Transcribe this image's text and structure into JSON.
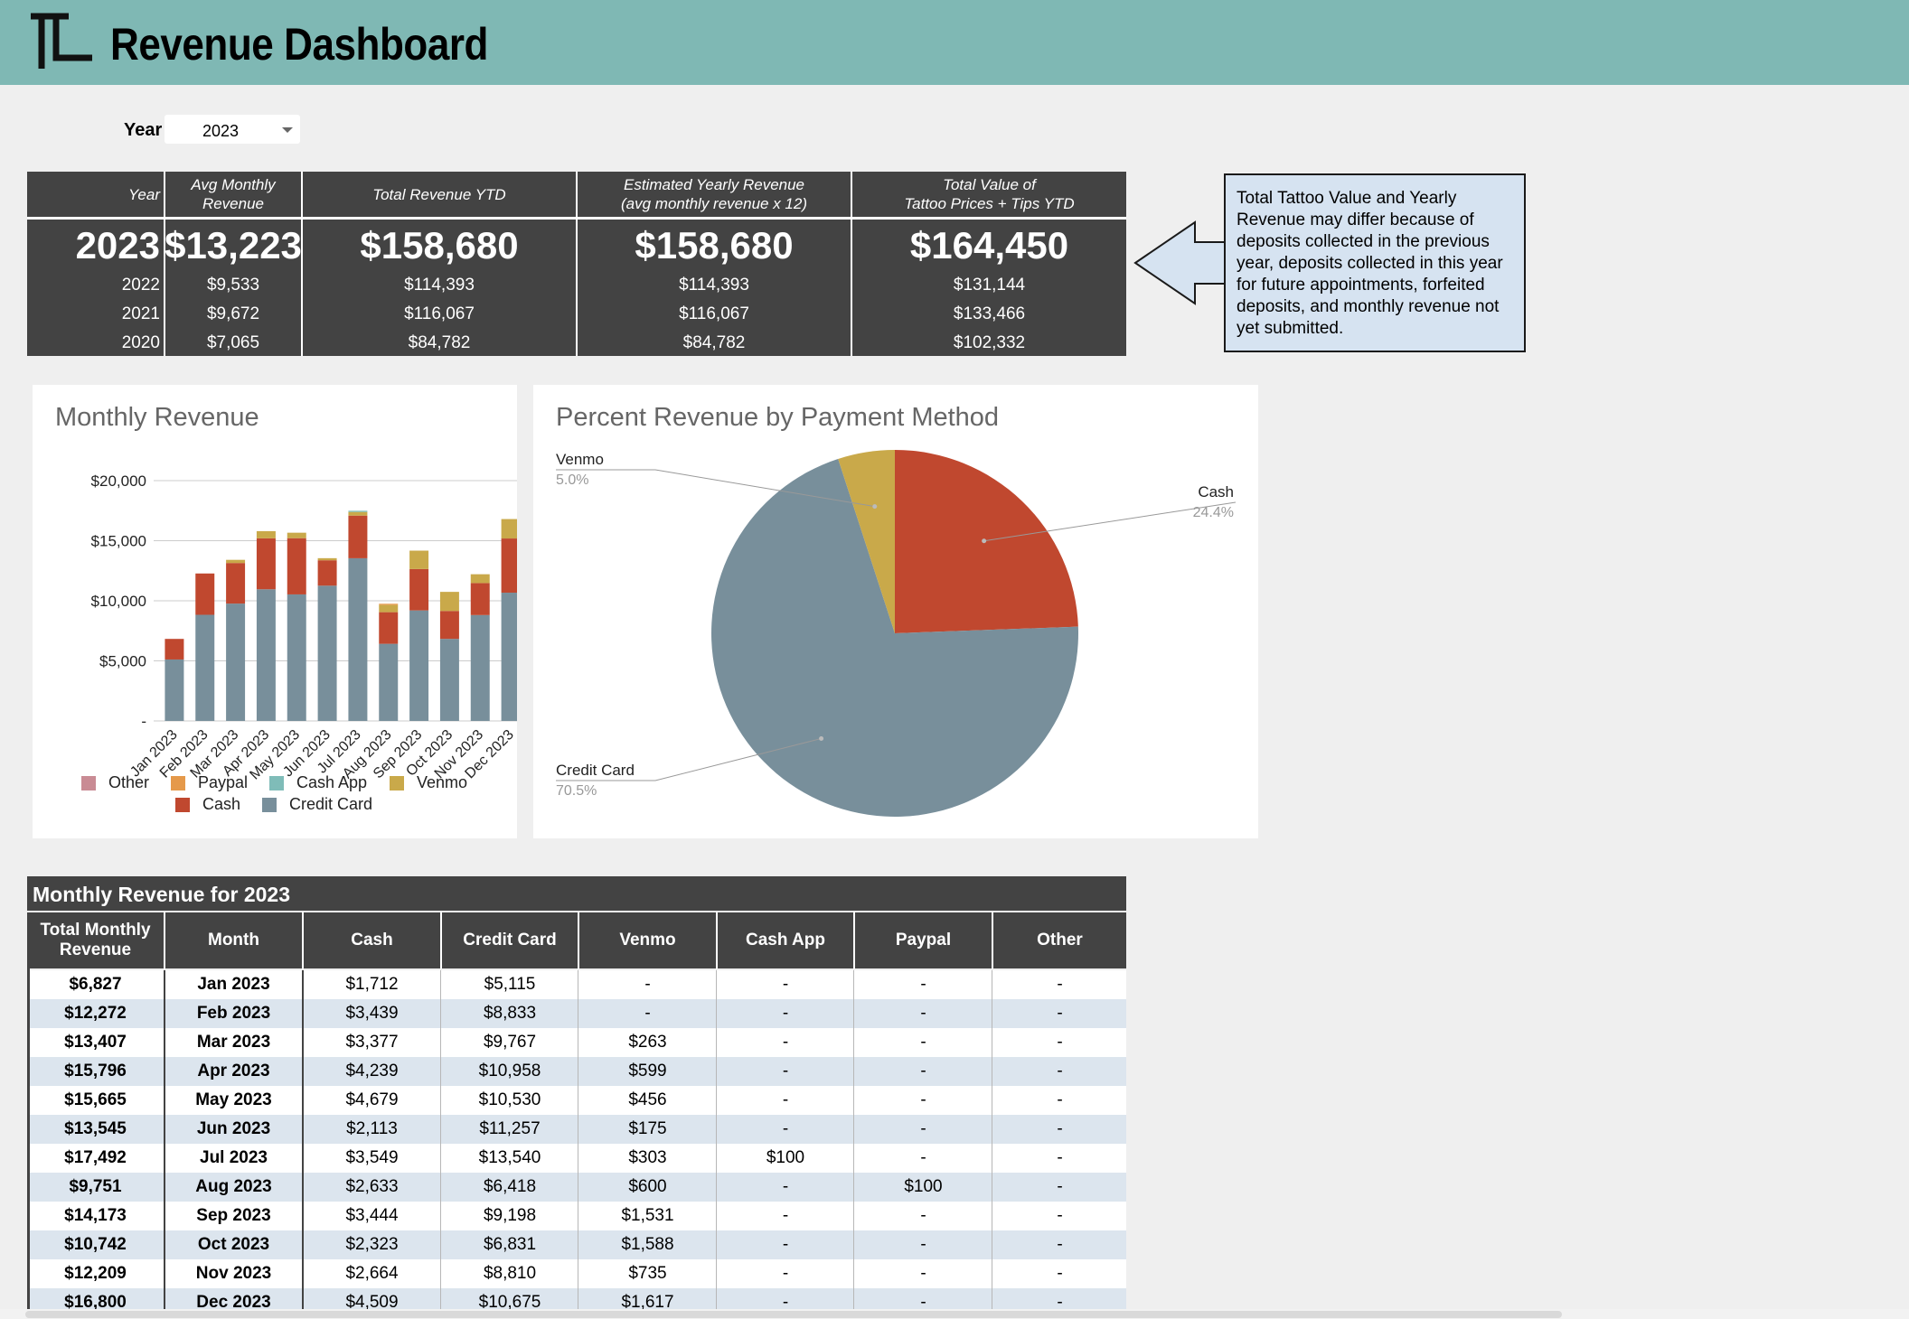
{
  "app": {
    "title": "Revenue Dashboard"
  },
  "filter": {
    "label": "Year",
    "selected": "2023"
  },
  "summary": {
    "headers": {
      "year": "Year",
      "avg_monthly_1": "Avg Monthly",
      "avg_monthly_2": "Revenue",
      "total_ytd": "Total Revenue YTD",
      "estimated_1": "Estimated Yearly Revenue",
      "estimated_2": "(avg monthly revenue x 12)",
      "tattoo_1": "Total Value of",
      "tattoo_2": "Tattoo Prices + Tips YTD"
    },
    "current": {
      "year": "2023",
      "avg": "$13,223",
      "ytd": "$158,680",
      "est": "$158,680",
      "tattoo": "$164,450"
    },
    "history": [
      {
        "year": "2022",
        "avg": "$9,533",
        "ytd": "$114,393",
        "est": "$114,393",
        "tattoo": "$131,144"
      },
      {
        "year": "2021",
        "avg": "$9,672",
        "ytd": "$116,067",
        "est": "$116,067",
        "tattoo": "$133,466"
      },
      {
        "year": "2020",
        "avg": "$7,065",
        "ytd": "$84,782",
        "est": "$84,782",
        "tattoo": "$102,332"
      }
    ]
  },
  "note": {
    "text": "Total Tattoo Value and Yearly Revenue may differ because of deposits collected in the previous year, deposits collected in this year for future appointments, forfeited deposits, and monthly revenue not yet submitted."
  },
  "colors": {
    "header_bg": "#7fb8b4",
    "dark": "#434343",
    "cash": "#c0482f",
    "credit_card": "#788f9b",
    "venmo": "#c9a94a",
    "cash_app": "#7fbcb8",
    "paypal": "#e5994a",
    "other": "#c98b94"
  },
  "chart_data": [
    {
      "type": "bar",
      "stacked": true,
      "title": "Monthly Revenue",
      "categories": [
        "Jan 2023",
        "Feb 2023",
        "Mar 2023",
        "Apr 2023",
        "May 2023",
        "Jun 2023",
        "Jul 2023",
        "Aug 2023",
        "Sep 2023",
        "Oct 2023",
        "Nov 2023",
        "Dec 2023"
      ],
      "series": [
        {
          "name": "Credit Card",
          "values": [
            5115,
            8833,
            9767,
            10958,
            10530,
            11257,
            13540,
            6418,
            9198,
            6831,
            8810,
            10675
          ]
        },
        {
          "name": "Cash",
          "values": [
            1712,
            3439,
            3377,
            4239,
            4679,
            2113,
            3549,
            2633,
            3444,
            2323,
            2664,
            4509
          ]
        },
        {
          "name": "Venmo",
          "values": [
            0,
            0,
            263,
            599,
            456,
            175,
            303,
            600,
            1531,
            1588,
            735,
            1617
          ]
        },
        {
          "name": "Cash App",
          "values": [
            0,
            0,
            0,
            0,
            0,
            0,
            100,
            0,
            0,
            0,
            0,
            0
          ]
        },
        {
          "name": "Paypal",
          "values": [
            0,
            0,
            0,
            0,
            0,
            0,
            0,
            100,
            0,
            0,
            0,
            0
          ]
        },
        {
          "name": "Other",
          "values": [
            0,
            0,
            0,
            0,
            0,
            0,
            0,
            0,
            0,
            0,
            0,
            0
          ]
        }
      ],
      "yticks": [
        "$20,000",
        "$15,000",
        "$10,000",
        "$5,000",
        "-"
      ],
      "ylim": [
        0,
        20000
      ],
      "grid": true,
      "legend_position": "bottom",
      "legend": [
        "Other",
        "Paypal",
        "Cash App",
        "Venmo",
        "Cash",
        "Credit Card"
      ]
    },
    {
      "type": "pie",
      "title": "Percent Revenue by Payment Method",
      "slices": [
        {
          "name": "Cash",
          "value": 24.4,
          "label": "24.4%"
        },
        {
          "name": "Credit Card",
          "value": 70.5,
          "label": "70.5%"
        },
        {
          "name": "Venmo",
          "value": 5.0,
          "label": "5.0%"
        }
      ]
    }
  ],
  "monthly_table": {
    "title": "Monthly Revenue for 2023",
    "headers": {
      "total_1": "Total Monthly",
      "total_2": "Revenue",
      "month": "Month",
      "cash": "Cash",
      "credit": "Credit Card",
      "venmo": "Venmo",
      "cashapp": "Cash App",
      "paypal": "Paypal",
      "other": "Other"
    },
    "rows": [
      [
        "$6,827",
        "Jan 2023",
        "$1,712",
        "$5,115",
        "-",
        "-",
        "-",
        "-"
      ],
      [
        "$12,272",
        "Feb 2023",
        "$3,439",
        "$8,833",
        "-",
        "-",
        "-",
        "-"
      ],
      [
        "$13,407",
        "Mar 2023",
        "$3,377",
        "$9,767",
        "$263",
        "-",
        "-",
        "-"
      ],
      [
        "$15,796",
        "Apr 2023",
        "$4,239",
        "$10,958",
        "$599",
        "-",
        "-",
        "-"
      ],
      [
        "$15,665",
        "May 2023",
        "$4,679",
        "$10,530",
        "$456",
        "-",
        "-",
        "-"
      ],
      [
        "$13,545",
        "Jun 2023",
        "$2,113",
        "$11,257",
        "$175",
        "-",
        "-",
        "-"
      ],
      [
        "$17,492",
        "Jul 2023",
        "$3,549",
        "$13,540",
        "$303",
        "$100",
        "-",
        "-"
      ],
      [
        "$9,751",
        "Aug 2023",
        "$2,633",
        "$6,418",
        "$600",
        "-",
        "$100",
        "-"
      ],
      [
        "$14,173",
        "Sep 2023",
        "$3,444",
        "$9,198",
        "$1,531",
        "-",
        "-",
        "-"
      ],
      [
        "$10,742",
        "Oct 2023",
        "$2,323",
        "$6,831",
        "$1,588",
        "-",
        "-",
        "-"
      ],
      [
        "$12,209",
        "Nov 2023",
        "$2,664",
        "$8,810",
        "$735",
        "-",
        "-",
        "-"
      ],
      [
        "$16,800",
        "Dec 2023",
        "$4,509",
        "$10,675",
        "$1,617",
        "-",
        "-",
        "-"
      ]
    ]
  }
}
